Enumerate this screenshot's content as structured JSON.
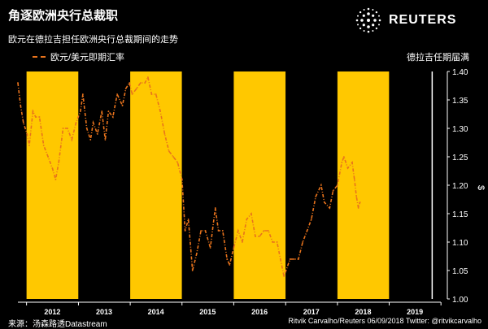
{
  "header": {
    "title": "角逐欧洲央行总裁职",
    "subtitle": "欧元在德拉吉担任欧洲央行总裁期间的走势",
    "logo_text": "REUTERS"
  },
  "footer": {
    "source": "来源：汤森路透Datastream",
    "credit": "Ritvik Carvalho/Reuters 06/09/2018 Twitter: @ritvikcarvalho"
  },
  "colors": {
    "background": "#000000",
    "highlight": "#ffc800",
    "line": "#e8731c",
    "text": "#ffffff"
  },
  "chart_data": {
    "type": "line",
    "title": "角逐欧洲央行总裁职",
    "subtitle": "欧元在德拉吉担任欧洲央行总裁期间的走势",
    "series": [
      {
        "name": "欧元/美元即期汇率",
        "x": [
          "2011-11-01",
          "2011-11-20",
          "2011-12-10",
          "2012-01-05",
          "2012-01-20",
          "2012-02-15",
          "2012-03-05",
          "2012-04-01",
          "2012-05-01",
          "2012-06-01",
          "2012-07-01",
          "2012-07-24",
          "2012-08-15",
          "2012-09-15",
          "2012-10-15",
          "2012-11-15",
          "2012-12-15",
          "2013-01-15",
          "2013-02-01",
          "2013-03-01",
          "2013-03-27",
          "2013-04-15",
          "2013-05-15",
          "2013-06-15",
          "2013-07-09",
          "2013-08-01",
          "2013-09-01",
          "2013-10-01",
          "2013-11-07",
          "2013-12-01",
          "2013-12-27",
          "2014-01-15",
          "2014-02-15",
          "2014-03-15",
          "2014-04-15",
          "2014-05-06",
          "2014-06-01",
          "2014-07-01",
          "2014-08-01",
          "2014-09-01",
          "2014-10-01",
          "2014-11-01",
          "2014-12-01",
          "2015-01-01",
          "2015-01-23",
          "2015-02-15",
          "2015-03-16",
          "2015-04-15",
          "2015-05-15",
          "2015-06-15",
          "2015-07-20",
          "2015-08-24",
          "2015-09-15",
          "2015-10-15",
          "2015-11-15",
          "2015-12-03",
          "2016-01-01",
          "2016-02-01",
          "2016-03-01",
          "2016-04-01",
          "2016-05-03",
          "2016-06-01",
          "2016-07-01",
          "2016-08-01",
          "2016-09-01",
          "2016-10-01",
          "2016-11-01",
          "2016-12-20",
          "2017-01-03",
          "2017-02-01",
          "2017-03-01",
          "2017-04-01",
          "2017-05-01",
          "2017-06-01",
          "2017-07-01",
          "2017-08-01",
          "2017-09-08",
          "2017-10-01",
          "2017-11-07",
          "2017-12-01",
          "2018-01-01",
          "2018-02-01",
          "2018-02-16",
          "2018-03-15",
          "2018-04-15",
          "2018-05-01",
          "2018-05-15",
          "2018-05-29",
          "2018-06-09"
        ],
        "y": [
          1.38,
          1.34,
          1.31,
          1.29,
          1.27,
          1.33,
          1.32,
          1.32,
          1.27,
          1.25,
          1.23,
          1.21,
          1.24,
          1.3,
          1.3,
          1.28,
          1.31,
          1.33,
          1.36,
          1.3,
          1.28,
          1.31,
          1.29,
          1.33,
          1.28,
          1.33,
          1.32,
          1.36,
          1.34,
          1.37,
          1.38,
          1.36,
          1.37,
          1.38,
          1.38,
          1.39,
          1.36,
          1.36,
          1.33,
          1.29,
          1.26,
          1.25,
          1.24,
          1.21,
          1.12,
          1.14,
          1.05,
          1.08,
          1.12,
          1.12,
          1.09,
          1.16,
          1.12,
          1.12,
          1.07,
          1.06,
          1.09,
          1.12,
          1.1,
          1.14,
          1.15,
          1.11,
          1.11,
          1.12,
          1.12,
          1.1,
          1.1,
          1.04,
          1.05,
          1.07,
          1.07,
          1.07,
          1.1,
          1.12,
          1.14,
          1.18,
          1.2,
          1.17,
          1.16,
          1.19,
          1.2,
          1.24,
          1.25,
          1.23,
          1.24,
          1.21,
          1.18,
          1.16,
          1.17
        ]
      }
    ],
    "highlight_periods": [
      {
        "start": "2012-01-01",
        "end": "2012-12-31"
      },
      {
        "start": "2014-01-01",
        "end": "2014-12-31"
      },
      {
        "start": "2016-01-01",
        "end": "2016-12-31"
      },
      {
        "start": "2018-01-01",
        "end": "2018-12-31"
      }
    ],
    "end_marker": {
      "date": "2019-10-31",
      "label": "德拉吉任期届满"
    },
    "x_range": [
      "2011-11-01",
      "2019-12-31"
    ],
    "x_tick_labels": [
      "2012",
      "2013",
      "2014",
      "2015",
      "2016",
      "2017",
      "2018",
      "2019"
    ],
    "ylim": [
      1.0,
      1.4
    ],
    "y_ticks": [
      "1.00",
      "1.05",
      "1.10",
      "1.15",
      "1.20",
      "1.25",
      "1.30",
      "1.35",
      "1.40"
    ],
    "ylabel": "$",
    "y_axis_side": "right",
    "grid": false,
    "legend": "top-left"
  }
}
